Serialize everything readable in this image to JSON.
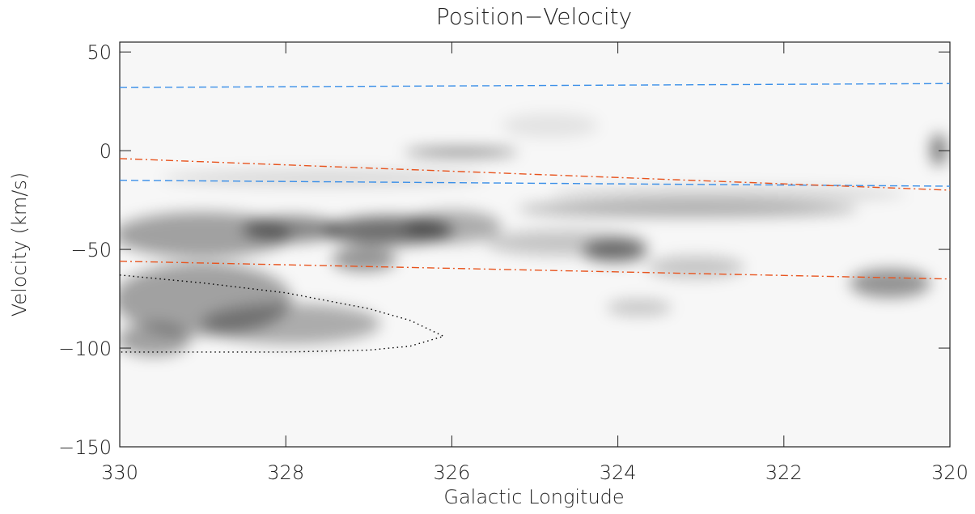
{
  "chart_data": {
    "type": "line",
    "title": "Position−Velocity",
    "xlabel": "Galactic Longitude",
    "ylabel": "Velocity (km/s)",
    "xlim": [
      330,
      320
    ],
    "ylim": [
      -150,
      55
    ],
    "xticks": [
      330,
      328,
      326,
      324,
      322,
      320
    ],
    "yticks": [
      {
        "value": -150,
        "label": "−150"
      },
      {
        "value": -100,
        "label": "−100"
      },
      {
        "value": -50,
        "label": "−50"
      },
      0,
      50
    ],
    "series": [
      {
        "color": "#3a8fe8",
        "style": "dashed",
        "x": [
          330,
          320
        ],
        "values": [
          32,
          34
        ]
      },
      {
        "color": "#3a8fe8",
        "style": "dashed",
        "x": [
          330,
          320
        ],
        "values": [
          -15,
          -18
        ]
      },
      {
        "color": "#e8541e",
        "style": "dash-dot",
        "x": [
          330,
          320
        ],
        "values": [
          -4,
          -20
        ]
      },
      {
        "color": "#e8541e",
        "style": "dash-dot",
        "x": [
          330,
          320
        ],
        "values": [
          -56,
          -65
        ]
      },
      {
        "color": "#000000",
        "style": "dotted",
        "x": [
          330,
          329,
          328,
          327,
          326.5,
          326.1,
          326.5,
          327,
          328,
          329,
          330
        ],
        "values": [
          -63,
          -67,
          -72,
          -80,
          -86,
          -94,
          -99,
          -101,
          -102,
          -102,
          -102
        ]
      }
    ]
  }
}
